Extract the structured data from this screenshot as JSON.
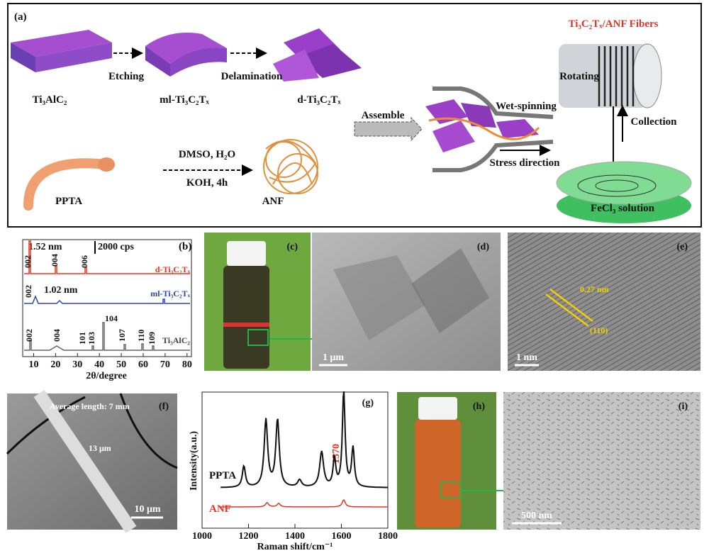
{
  "panel_a": {
    "label": "(a)",
    "title": "Ti₃C₂Tₓ/ANF Fibers",
    "materials": [
      "Ti₃AlC₂",
      "ml-Ti₃C₂Tₓ",
      "d-Ti₃C₂Tₓ",
      "PPTA",
      "ANF"
    ],
    "steps": [
      "Etching",
      "Delamination",
      "DMSO, H₂O",
      "KOH, 4h",
      "Assemble",
      "Wet-spinning",
      "Stress direction",
      "Rotating",
      "Collection",
      "FeCl₃ solution"
    ]
  },
  "panel_b": {
    "label": "(b)",
    "scale": "2000 cps",
    "xlabel": "2θ/degree",
    "xticks": [
      10,
      20,
      30,
      40,
      50,
      60,
      70,
      80
    ],
    "traces": [
      {
        "name": "d-Ti₃C₂Tₓ",
        "spacing": "1.52 nm",
        "peaks": [
          "002",
          "004",
          "006"
        ]
      },
      {
        "name": "ml-Ti₃C₂Tₓ",
        "spacing": "1.02 nm",
        "peaks": [
          "002"
        ]
      },
      {
        "name": "Ti₃AlC₂",
        "peaks": [
          "002",
          "004",
          "101",
          "103",
          "104",
          "107",
          "110",
          "109"
        ]
      }
    ]
  },
  "panel_c": {
    "label": "(c)"
  },
  "panel_d": {
    "label": "(d)",
    "scale_bar": "1 μm"
  },
  "panel_e": {
    "label": "(e)",
    "annotations": [
      "0.27 nm",
      "(110)"
    ],
    "scale_bar": "1 nm"
  },
  "panel_f": {
    "label": "(f)",
    "note": "Average length: 7 mm",
    "width": "13 μm",
    "scale_bar": "10 μm"
  },
  "panel_g": {
    "label": "(g)",
    "ylabel": "Intensity(a.u.)",
    "xlabel": "Raman shift/cm⁻¹",
    "xticks": [
      1000,
      1200,
      1400,
      1600,
      1800
    ],
    "traces": [
      "PPTA",
      "ANF"
    ],
    "peak": "1570"
  },
  "panel_h": {
    "label": "(h)"
  },
  "panel_i": {
    "label": "(i)",
    "scale_bar": "500 nm"
  }
}
